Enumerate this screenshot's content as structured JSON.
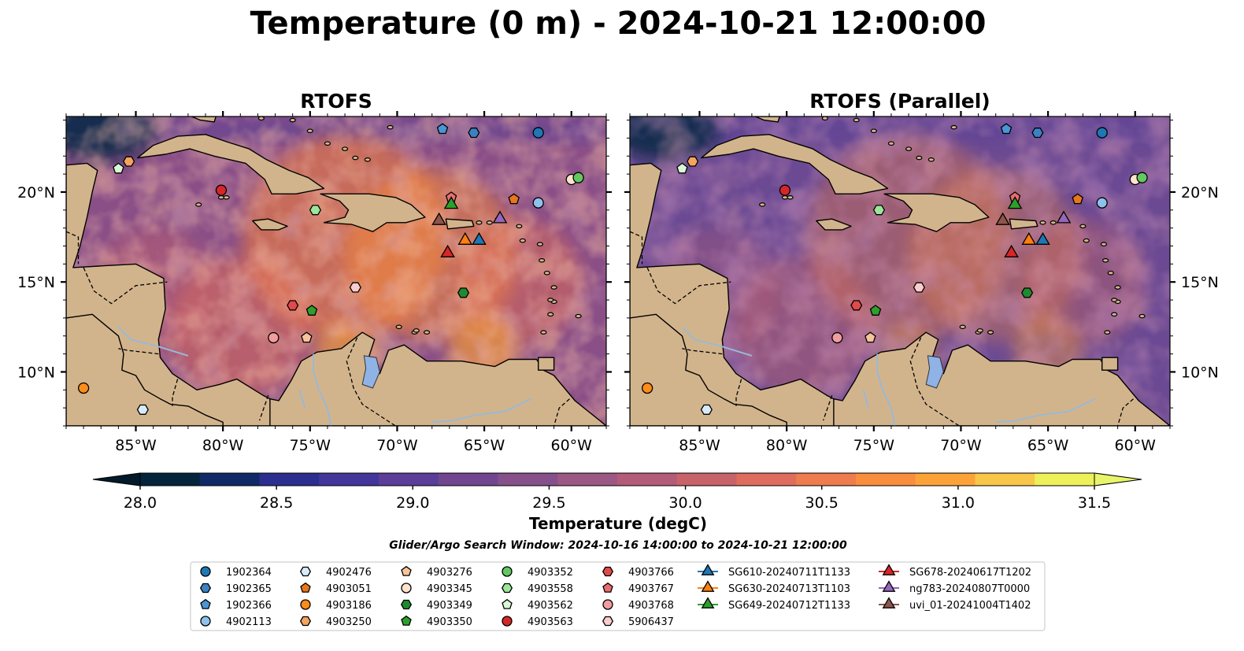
{
  "chart_data": {
    "type": "heatmap",
    "title": "Temperature (0 m) - 2024-10-21 12:00:00",
    "panels": [
      {
        "title": "RTOFS",
        "variant": "base"
      },
      {
        "title": "RTOFS (Parallel)",
        "variant": "parallel"
      }
    ],
    "lon_range": [
      -89,
      -58
    ],
    "lat_range": [
      7,
      24.2
    ],
    "xticks": [
      -85,
      -80,
      -75,
      -70,
      -65,
      -60
    ],
    "xtick_labels": [
      "85°W",
      "80°W",
      "75°W",
      "70°W",
      "65°W",
      "60°W"
    ],
    "yticks": [
      10,
      15,
      20
    ],
    "ytick_labels": [
      "10°N",
      "15°N",
      "20°N"
    ],
    "colorbar": {
      "label": "Temperature (degC)",
      "min": 28.0,
      "max": 31.5,
      "step": 0.25,
      "ticks": [
        28.0,
        28.5,
        29.0,
        29.5,
        30.0,
        30.5,
        31.0,
        31.5
      ],
      "tick_labels": [
        "28.0",
        "28.5",
        "29.0",
        "29.5",
        "30.0",
        "30.5",
        "31.0",
        "31.5"
      ],
      "colors": [
        "#03243a",
        "#0f2a66",
        "#2b2e8e",
        "#43369a",
        "#5a3e98",
        "#70478f",
        "#86508a",
        "#9c5885",
        "#b25c79",
        "#c8636a",
        "#de6d5e",
        "#ee7c4e",
        "#f88e3e",
        "#fca338",
        "#f8c74a",
        "#eef05a"
      ],
      "under_color": "#021a2a",
      "over_color": "#e8f56b"
    },
    "search_window": "Glider/Argo Search Window: 2024-10-16 14:00:00 to 2024-10-21 12:00:00",
    "platforms": [
      {
        "id": "1902364",
        "lon": -61.9,
        "lat": 23.3,
        "marker": "circle",
        "color": "#1f77b4",
        "kind": "argo"
      },
      {
        "id": "1902365",
        "lon": -65.6,
        "lat": 23.3,
        "marker": "hexagon",
        "color": "#3b82c4",
        "kind": "argo"
      },
      {
        "id": "1902366",
        "lon": -67.4,
        "lat": 23.5,
        "marker": "pentagon",
        "color": "#4a95d6",
        "kind": "argo"
      },
      {
        "id": "4902113",
        "lon": -61.9,
        "lat": 19.4,
        "marker": "circle",
        "color": "#8ec2ec",
        "kind": "argo"
      },
      {
        "id": "4902476",
        "lon": -84.6,
        "lat": 7.9,
        "marker": "hexagon",
        "color": "#d8ebfa",
        "kind": "argo"
      },
      {
        "id": "4903051",
        "lon": -63.3,
        "lat": 19.6,
        "marker": "pentagon",
        "color": "#e8771c",
        "kind": "argo"
      },
      {
        "id": "4903186",
        "lon": -88.0,
        "lat": 9.1,
        "marker": "circle",
        "color": "#ff8c1a",
        "kind": "argo"
      },
      {
        "id": "4903250",
        "lon": -85.4,
        "lat": 21.7,
        "marker": "hexagon",
        "color": "#f6a35e",
        "kind": "argo"
      },
      {
        "id": "4903276",
        "lon": -75.2,
        "lat": 11.9,
        "marker": "pentagon",
        "color": "#f7c39a",
        "kind": "argo"
      },
      {
        "id": "4903345",
        "lon": -60.0,
        "lat": 20.7,
        "marker": "circle",
        "color": "#fde3cc",
        "kind": "argo"
      },
      {
        "id": "4903349",
        "lon": -66.2,
        "lat": 14.4,
        "marker": "hexagon",
        "color": "#1f8a2e",
        "kind": "argo"
      },
      {
        "id": "4903350",
        "lon": -74.9,
        "lat": 13.4,
        "marker": "pentagon",
        "color": "#2ca02c",
        "kind": "argo"
      },
      {
        "id": "4903352",
        "lon": -59.6,
        "lat": 20.8,
        "marker": "circle",
        "color": "#63c860",
        "kind": "argo"
      },
      {
        "id": "4903558",
        "lon": -74.7,
        "lat": 19.0,
        "marker": "hexagon",
        "color": "#9be69a",
        "kind": "argo"
      },
      {
        "id": "4903562",
        "lon": -86.0,
        "lat": 21.3,
        "marker": "pentagon",
        "color": "#d9f7d6",
        "kind": "argo"
      },
      {
        "id": "4903563",
        "lon": -80.1,
        "lat": 20.1,
        "marker": "circle",
        "color": "#d62728",
        "kind": "argo"
      },
      {
        "id": "4903766",
        "lon": -76.0,
        "lat": 13.7,
        "marker": "hexagon",
        "color": "#e04a4b",
        "kind": "argo"
      },
      {
        "id": "4903767",
        "lon": -66.9,
        "lat": 19.7,
        "marker": "pentagon",
        "color": "#ea6e6f",
        "kind": "argo"
      },
      {
        "id": "4903768",
        "lon": -77.1,
        "lat": 11.9,
        "marker": "circle",
        "color": "#f29c9d",
        "kind": "argo"
      },
      {
        "id": "5906437",
        "lon": -72.4,
        "lat": 14.7,
        "marker": "hexagon",
        "color": "#fbcccd",
        "kind": "argo"
      },
      {
        "id": "SG610-20240711T1133",
        "lon": -65.3,
        "lat": 17.4,
        "marker": "triangle",
        "color": "#1f77b4",
        "kind": "glider"
      },
      {
        "id": "SG630-20240713T1103",
        "lon": -66.1,
        "lat": 17.4,
        "marker": "triangle",
        "color": "#ff7f0e",
        "kind": "glider"
      },
      {
        "id": "SG649-20240712T1133",
        "lon": -66.9,
        "lat": 19.4,
        "marker": "triangle",
        "color": "#2ca02c",
        "kind": "glider"
      },
      {
        "id": "SG678-20240617T1202",
        "lon": -67.1,
        "lat": 16.7,
        "marker": "triangle",
        "color": "#d62728",
        "kind": "glider"
      },
      {
        "id": "ng783-20240807T0000",
        "lon": -64.1,
        "lat": 18.6,
        "marker": "triangle",
        "color": "#9467bd",
        "kind": "glider"
      },
      {
        "id": "uvi_01-20241004T1402",
        "lon": -67.6,
        "lat": 18.5,
        "marker": "triangle",
        "color": "#8c564b",
        "kind": "glider"
      }
    ]
  },
  "colors": {
    "land": "#d2b48c",
    "lake": "#8fb3e6",
    "river": "#9ab9d6",
    "coast": "#000000"
  }
}
